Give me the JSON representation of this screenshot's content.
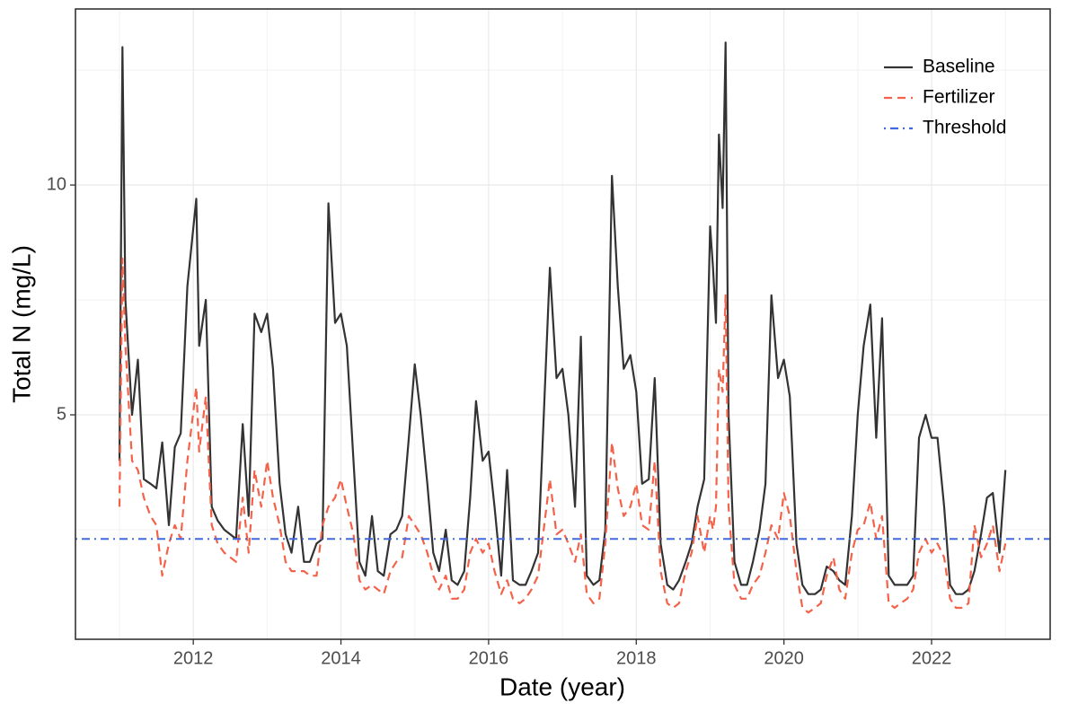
{
  "chart_data": {
    "type": "line",
    "x_label": "Date (year)",
    "y_label": "Total N (mg/L)",
    "xlim": [
      2010.404,
      2023.606
    ],
    "ylim": [
      0.117,
      13.83
    ],
    "xticks": [
      2012,
      2014,
      2016,
      2018,
      2020,
      2022
    ],
    "yticks": [
      5,
      10
    ],
    "grid": true,
    "legend": "top-right",
    "x": [
      2011.0,
      2011.04,
      2011.08,
      2011.17,
      2011.25,
      2011.33,
      2011.42,
      2011.5,
      2011.58,
      2011.67,
      2011.75,
      2011.83,
      2011.92,
      2012.04,
      2012.08,
      2012.17,
      2012.25,
      2012.33,
      2012.42,
      2012.5,
      2012.58,
      2012.67,
      2012.75,
      2012.83,
      2012.92,
      2013.0,
      2013.08,
      2013.17,
      2013.25,
      2013.33,
      2013.42,
      2013.5,
      2013.58,
      2013.67,
      2013.75,
      2013.83,
      2013.92,
      2014.0,
      2014.08,
      2014.17,
      2014.25,
      2014.33,
      2014.42,
      2014.5,
      2014.58,
      2014.67,
      2014.75,
      2014.83,
      2014.92,
      2015.0,
      2015.08,
      2015.17,
      2015.25,
      2015.33,
      2015.42,
      2015.5,
      2015.58,
      2015.67,
      2015.75,
      2015.83,
      2015.92,
      2016.0,
      2016.08,
      2016.17,
      2016.25,
      2016.33,
      2016.42,
      2016.5,
      2016.58,
      2016.67,
      2016.83,
      2016.92,
      2017.0,
      2017.08,
      2017.17,
      2017.25,
      2017.33,
      2017.42,
      2017.5,
      2017.58,
      2017.67,
      2017.75,
      2017.83,
      2017.92,
      2018.0,
      2018.08,
      2018.17,
      2018.25,
      2018.33,
      2018.42,
      2018.5,
      2018.58,
      2018.67,
      2018.75,
      2018.83,
      2018.92,
      2019.0,
      2019.04,
      2019.08,
      2019.12,
      2019.17,
      2019.21,
      2019.25,
      2019.33,
      2019.42,
      2019.5,
      2019.58,
      2019.67,
      2019.75,
      2019.83,
      2019.92,
      2020.0,
      2020.08,
      2020.17,
      2020.25,
      2020.33,
      2020.42,
      2020.5,
      2020.58,
      2020.67,
      2020.75,
      2020.83,
      2020.92,
      2021.0,
      2021.08,
      2021.17,
      2021.25,
      2021.33,
      2021.42,
      2021.5,
      2021.58,
      2021.67,
      2021.75,
      2021.83,
      2021.92,
      2022.0,
      2022.08,
      2022.17,
      2022.25,
      2022.33,
      2022.42,
      2022.5,
      2022.58,
      2022.67,
      2022.75,
      2022.83,
      2022.92,
      2023.0
    ],
    "series": [
      {
        "name": "Baseline",
        "color": "#333333",
        "dash": "solid",
        "values": [
          4.0,
          13.0,
          7.5,
          5.0,
          6.2,
          3.6,
          3.5,
          3.4,
          4.4,
          2.6,
          4.3,
          4.6,
          7.8,
          9.7,
          6.5,
          7.5,
          3.0,
          2.7,
          2.5,
          2.4,
          2.3,
          4.8,
          2.8,
          7.2,
          6.8,
          7.2,
          6.0,
          3.5,
          2.4,
          2.0,
          3.0,
          1.8,
          1.8,
          2.2,
          2.3,
          9.6,
          7.0,
          7.2,
          6.5,
          4.0,
          1.8,
          1.5,
          2.8,
          1.6,
          1.5,
          2.4,
          2.5,
          2.8,
          4.5,
          6.1,
          5.0,
          3.5,
          2.0,
          1.6,
          2.5,
          1.4,
          1.3,
          1.6,
          3.2,
          5.3,
          4.0,
          4.2,
          3.0,
          1.5,
          3.8,
          1.4,
          1.3,
          1.3,
          1.6,
          2.0,
          8.2,
          5.8,
          6.0,
          5.0,
          3.0,
          6.7,
          1.5,
          1.3,
          1.4,
          2.5,
          10.2,
          7.8,
          6.0,
          6.3,
          5.5,
          3.5,
          3.6,
          5.8,
          2.2,
          1.3,
          1.2,
          1.4,
          1.8,
          2.2,
          3.0,
          3.6,
          9.1,
          8.2,
          7.0,
          11.1,
          9.5,
          13.1,
          5.0,
          1.8,
          1.3,
          1.3,
          1.8,
          2.5,
          3.5,
          7.6,
          5.8,
          6.2,
          5.4,
          2.2,
          1.3,
          1.1,
          1.1,
          1.2,
          1.7,
          1.6,
          1.4,
          1.3,
          2.8,
          5.0,
          6.5,
          7.4,
          4.5,
          7.1,
          1.5,
          1.3,
          1.3,
          1.3,
          1.5,
          4.5,
          5.0,
          4.5,
          4.5,
          3.0,
          1.3,
          1.1,
          1.1,
          1.2,
          1.6,
          2.4,
          3.2,
          3.3,
          2.0,
          3.8
        ]
      },
      {
        "name": "Fertilizer",
        "color": "#f4624a",
        "dash": "dashed",
        "values": [
          3.0,
          8.4,
          6.5,
          4.0,
          3.8,
          3.2,
          2.8,
          2.6,
          1.5,
          2.2,
          2.6,
          2.3,
          4.0,
          5.6,
          4.2,
          5.4,
          2.6,
          2.2,
          2.0,
          1.9,
          1.8,
          3.2,
          2.0,
          3.8,
          3.0,
          4.0,
          3.2,
          2.6,
          1.8,
          1.6,
          1.6,
          1.6,
          1.5,
          1.5,
          2.6,
          3.0,
          3.2,
          3.6,
          3.0,
          2.4,
          1.4,
          1.2,
          1.3,
          1.2,
          1.1,
          1.6,
          1.8,
          1.9,
          2.8,
          2.6,
          2.4,
          2.0,
          1.5,
          1.2,
          1.5,
          1.0,
          1.0,
          1.2,
          2.0,
          2.3,
          2.0,
          2.2,
          1.6,
          1.1,
          1.4,
          1.0,
          0.9,
          1.0,
          1.2,
          1.5,
          3.6,
          2.4,
          2.5,
          2.2,
          1.8,
          2.4,
          1.1,
          0.9,
          1.0,
          2.2,
          4.4,
          3.4,
          2.8,
          3.0,
          3.5,
          2.6,
          2.5,
          4.0,
          1.6,
          0.9,
          0.8,
          0.9,
          1.6,
          2.0,
          2.8,
          2.0,
          2.8,
          2.5,
          3.0,
          6.0,
          5.5,
          7.6,
          3.0,
          1.3,
          1.0,
          1.0,
          1.3,
          1.5,
          2.0,
          2.6,
          2.3,
          3.3,
          2.8,
          1.6,
          0.8,
          0.7,
          0.8,
          0.9,
          1.5,
          1.9,
          1.2,
          1.0,
          2.0,
          2.5,
          2.6,
          3.1,
          2.3,
          2.8,
          0.9,
          0.8,
          0.9,
          1.0,
          1.2,
          2.0,
          2.3,
          2.0,
          2.2,
          1.9,
          1.0,
          0.8,
          0.8,
          0.9,
          2.6,
          1.9,
          2.2,
          2.6,
          1.6,
          2.2
        ]
      }
    ],
    "threshold": {
      "name": "Threshold",
      "color": "#4169e1",
      "dash": "dotdash",
      "value": 2.3
    }
  }
}
